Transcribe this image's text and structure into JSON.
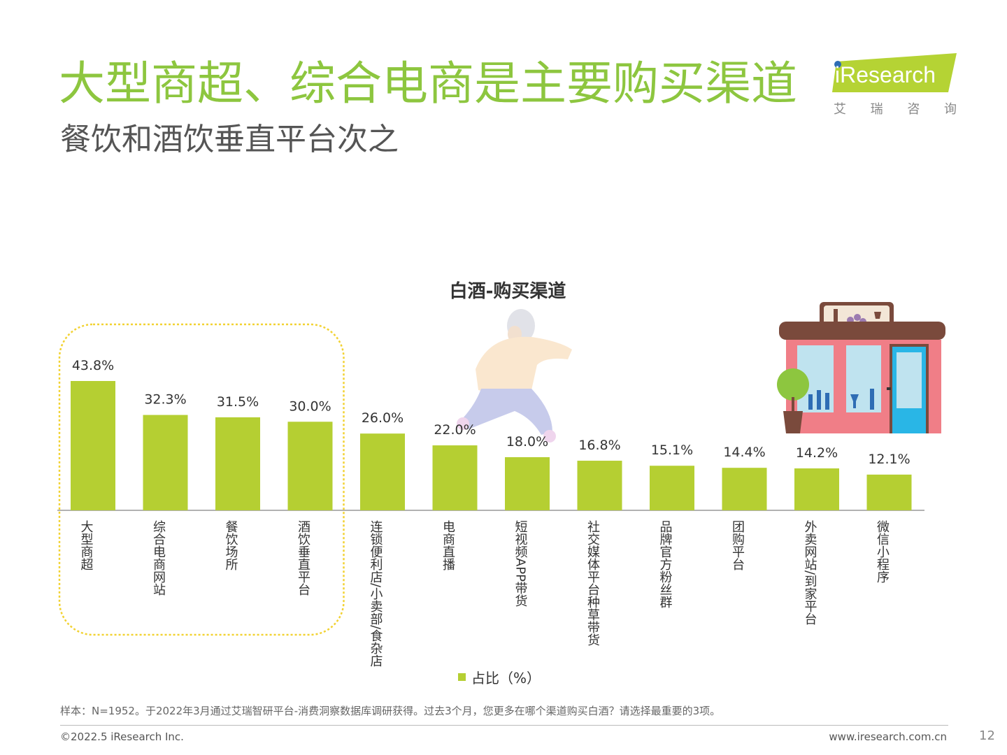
{
  "header": {
    "title": "大型商超、综合电商是主要购买渠道",
    "subtitle": "餐饮和酒饮垂直平台次之"
  },
  "logo": {
    "brand": "iResearch",
    "cn_chars": [
      "艾",
      "瑞",
      "咨",
      "询"
    ],
    "accent": "#b5d334"
  },
  "chart_data": {
    "type": "bar",
    "title": "白酒-购买渠道",
    "categories": [
      "大型商超",
      "综合电商网站",
      "餐饮场所",
      "酒饮垂直平台",
      "连锁便利店/小卖部/食杂店",
      "电商直播",
      "短视频APP带货",
      "社交媒体平台种草带货",
      "品牌官方粉丝群",
      "团购平台",
      "外卖网站/到家平台",
      "微信小程序"
    ],
    "series": [
      {
        "name": "占比（%）",
        "values": [
          43.8,
          32.3,
          31.5,
          30.0,
          26.0,
          22.0,
          18.0,
          16.8,
          15.1,
          14.4,
          14.2,
          12.1
        ]
      }
    ],
    "value_labels": [
      "43.8%",
      "32.3%",
      "31.5%",
      "30.0%",
      "26.0%",
      "22.0%",
      "18.0%",
      "16.8%",
      "15.1%",
      "14.4%",
      "14.2%",
      "12.1%"
    ],
    "ylim": [
      0,
      50
    ],
    "grid": false,
    "legend": "bottom-center",
    "bar_color": "#b5cf32",
    "highlight": {
      "start": 0,
      "end": 3,
      "color": "#f2d232"
    }
  },
  "legend_label": "占比（%）",
  "footer": {
    "note": "样本：N=1952。于2022年3月通过艾瑞智研平台-消费洞察数据库调研获得。过去3个月，您更多在哪个渠道购买白酒？请选择最重要的3项。",
    "copyright": "©2022.5 iResearch Inc.",
    "website": "www.iresearch.com.cn",
    "page": "12"
  },
  "colors": {
    "title": "#8dc63f",
    "subtitle": "#555555",
    "bar": "#b5cf32"
  }
}
